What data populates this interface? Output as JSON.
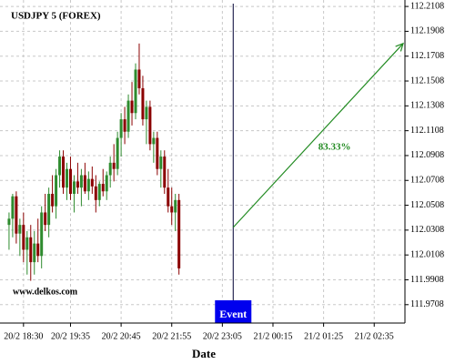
{
  "chart_data": {
    "type": "candlestick",
    "title": "USDJPY 5 (FOREX)",
    "x_label": "Date",
    "watermark": "www.delkos.com",
    "xlim": [
      -1.5,
      110.5
    ],
    "ylim": [
      111.956,
      112.216
    ],
    "yticks": [
      111.9708,
      111.9908,
      112.0108,
      112.0308,
      112.0508,
      112.0708,
      112.0908,
      112.1108,
      112.1308,
      112.1508,
      112.1708,
      112.1908,
      112.2108
    ],
    "xticks": [
      {
        "value": 5,
        "label": "20/2 18:30"
      },
      {
        "value": 18,
        "label": "20/2 19:35"
      },
      {
        "value": 32,
        "label": "20/2 20:45"
      },
      {
        "value": 46,
        "label": "20/2 21:55"
      },
      {
        "value": 60,
        "label": "20/2 23:05"
      },
      {
        "value": 74,
        "label": "21/2 00:15"
      },
      {
        "value": 88,
        "label": "21/2 01:25"
      },
      {
        "value": 102,
        "label": "21/2 02:35"
      }
    ],
    "grid": true,
    "up_color": "#2e8b2e",
    "down_color": "#8b0000",
    "candles": {
      "x": [
        1,
        2,
        3,
        4,
        5,
        6,
        7,
        8,
        9,
        10,
        11,
        12,
        13,
        14,
        15,
        16,
        17,
        18,
        19,
        20,
        21,
        22,
        23,
        24,
        25,
        26,
        27,
        28,
        29,
        30,
        31,
        32,
        33,
        34,
        35,
        36,
        37,
        38,
        39,
        40,
        41,
        42,
        43,
        44,
        45,
        46,
        47,
        48
      ],
      "open": [
        112.035,
        112.04,
        112.058,
        112.028,
        112.035,
        112.015,
        112.025,
        112.005,
        112.02,
        112.01,
        112.045,
        112.035,
        112.06,
        112.05,
        112.075,
        112.09,
        112.065,
        112.08,
        112.06,
        112.07,
        112.065,
        112.075,
        112.062,
        112.072,
        112.066,
        112.055,
        112.068,
        112.062,
        112.075,
        112.085,
        112.08,
        112.105,
        112.12,
        112.11,
        112.135,
        112.125,
        112.16,
        112.145,
        112.12,
        112.13,
        112.1,
        112.105,
        112.08,
        112.09,
        112.065,
        112.05,
        112.045,
        112.055
      ],
      "high": [
        112.045,
        112.06,
        112.062,
        112.04,
        112.045,
        112.03,
        112.035,
        112.03,
        112.04,
        112.05,
        112.06,
        112.065,
        112.075,
        112.08,
        112.095,
        112.095,
        112.085,
        112.09,
        112.075,
        112.085,
        112.08,
        112.085,
        112.078,
        112.082,
        112.075,
        112.07,
        112.08,
        112.078,
        112.09,
        112.1,
        112.11,
        112.125,
        112.13,
        112.14,
        112.15,
        112.165,
        112.181,
        112.155,
        112.135,
        112.135,
        112.11,
        112.11,
        112.095,
        112.095,
        112.08,
        112.065,
        112.06,
        112.06
      ],
      "low": [
        112.015,
        112.025,
        112.02,
        112.01,
        112.005,
        111.995,
        111.99,
        111.995,
        112.005,
        112.0,
        112.03,
        112.025,
        112.045,
        112.04,
        112.065,
        112.06,
        112.055,
        112.055,
        112.045,
        112.06,
        112.05,
        112.06,
        112.055,
        112.06,
        112.045,
        112.05,
        112.058,
        112.055,
        112.065,
        112.07,
        112.075,
        112.09,
        112.1,
        112.105,
        112.115,
        112.12,
        112.14,
        112.115,
        112.1,
        112.095,
        112.085,
        112.075,
        112.065,
        112.06,
        112.045,
        112.035,
        112.03,
        111.995
      ],
      "close": [
        112.04,
        112.058,
        112.028,
        112.035,
        112.015,
        112.025,
        112.005,
        112.02,
        112.01,
        112.045,
        112.035,
        112.06,
        112.05,
        112.075,
        112.09,
        112.065,
        112.08,
        112.06,
        112.07,
        112.065,
        112.075,
        112.062,
        112.072,
        112.066,
        112.055,
        112.068,
        112.062,
        112.075,
        112.085,
        112.08,
        112.105,
        112.12,
        112.11,
        112.135,
        112.125,
        112.16,
        112.145,
        112.12,
        112.13,
        112.1,
        112.105,
        112.08,
        112.09,
        112.065,
        112.05,
        112.045,
        112.055,
        112.0
      ]
    },
    "event": {
      "label": "Event",
      "x": 63,
      "color": "#0000ee"
    },
    "projection": {
      "label": "83.33%",
      "color": "#228b22",
      "x": [
        63,
        110
      ],
      "y": [
        112.033,
        112.181
      ]
    }
  }
}
